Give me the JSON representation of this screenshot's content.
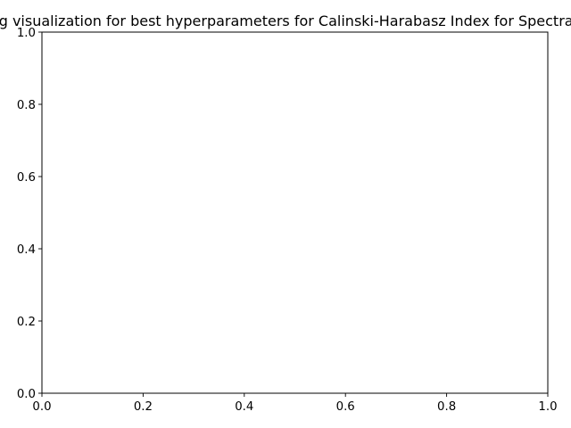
{
  "chart_data": {
    "type": "scatter",
    "title": "Clustering visualization for best hyperparameters for Calinski-Harabasz Index for Spectral Clustering",
    "xlabel": "",
    "ylabel": "",
    "xlim": [
      0.0,
      1.0
    ],
    "ylim": [
      0.0,
      1.0
    ],
    "xticks": [
      "0.0",
      "0.2",
      "0.4",
      "0.6",
      "0.8",
      "1.0"
    ],
    "yticks": [
      "0.0",
      "0.2",
      "0.4",
      "0.6",
      "0.8",
      "1.0"
    ],
    "grid": false,
    "series": []
  }
}
